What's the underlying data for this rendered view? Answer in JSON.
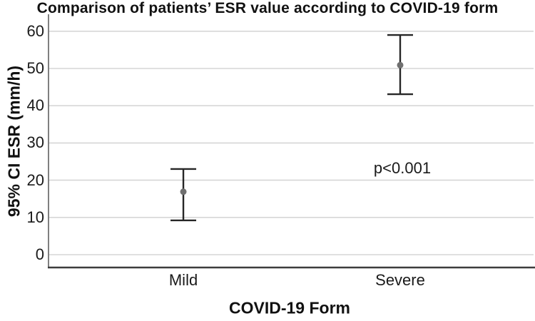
{
  "figure": {
    "title": "Comparison of patients’ ESR value according to COVID-19 form",
    "y_axis_label": "95% CI ESR (mm/h)",
    "x_axis_label": "COVID-19 Form",
    "annotation": "p<0.001"
  },
  "chart_data": {
    "type": "scatter",
    "subtype": "mean-with-95ci-error-bars",
    "title": "Comparison of patients’ ESR value according to COVID-19 form",
    "xlabel": "COVID-19 Form",
    "ylabel": "95% CI ESR (mm/h)",
    "categories": [
      "Mild",
      "Severe"
    ],
    "series": [
      {
        "name": "95% CI ESR (mm/h)",
        "points": [
          {
            "category": "Mild",
            "mean": 16.9,
            "ci_low": 9.2,
            "ci_high": 23.0
          },
          {
            "category": "Severe",
            "mean": 50.9,
            "ci_low": 43.1,
            "ci_high": 59.0
          }
        ]
      }
    ],
    "y_ticks": [
      "0",
      "10",
      "20",
      "30",
      "40",
      "50",
      "60"
    ],
    "y_tick_values": [
      0,
      10,
      20,
      30,
      40,
      50,
      60
    ],
    "ylim": [
      -3.4,
      64.2
    ],
    "grid": "horizontal",
    "legend": "none",
    "annotation": {
      "text": "p<0.001",
      "near_category": "Severe",
      "y_value": 23.2
    },
    "colors": {
      "gridline": "#d6d6d6",
      "y_axis_line": "#808080",
      "x_axis_line": "#3d3d3d",
      "error_bar": "#262626",
      "mean_dot": "#6f6f6f",
      "text": "#111111"
    }
  }
}
